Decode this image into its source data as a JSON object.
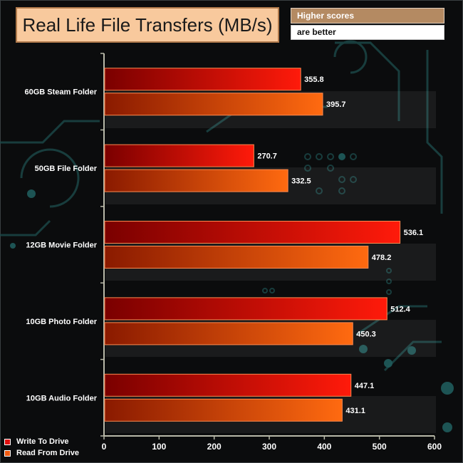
{
  "header": {
    "title": "Real Life File Transfers (MB/s)",
    "note_line1": "Higher scores",
    "note_line2": "are better"
  },
  "chart_data": {
    "type": "bar",
    "orientation": "horizontal",
    "title": "Real Life File Transfers (MB/s)",
    "categories": [
      "60GB Steam Folder",
      "50GB File Folder",
      "12GB Movie Folder",
      "10GB Photo Folder",
      "10GB Audio Folder"
    ],
    "series": [
      {
        "name": "Write To  Drive",
        "values": [
          355.8,
          270.7,
          536.1,
          512.4,
          447.1
        ],
        "value_labels": [
          "355.8",
          "270.7",
          "536.1",
          "512.4",
          "447.1"
        ],
        "color": "#e01010"
      },
      {
        "name": "Read From  Drive",
        "values": [
          395.7,
          332.5,
          478.2,
          450.3,
          431.1
        ],
        "value_labels": [
          "395.7",
          "332.5",
          "478.2",
          "450.3",
          "431.1"
        ],
        "color": "#f05a10"
      }
    ],
    "xlim": [
      0,
      600
    ],
    "x_ticks": [
      "0",
      "100",
      "200",
      "300",
      "400",
      "500",
      "600"
    ],
    "legend_position": "bottom-left",
    "grid": false
  }
}
